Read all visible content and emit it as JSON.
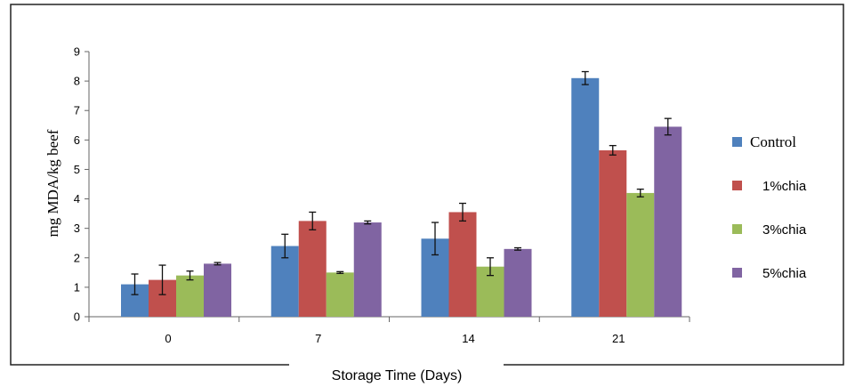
{
  "chart_data": {
    "type": "bar",
    "title": "",
    "xlabel": "Storage Time (Days)",
    "ylabel": "mg MDA/kg beef",
    "categories": [
      "0",
      "7",
      "14",
      "21"
    ],
    "ylim": [
      0,
      9
    ],
    "yticks": [
      "0",
      "1",
      "2",
      "3",
      "4",
      "5",
      "6",
      "7",
      "8",
      "9"
    ],
    "grid": false,
    "legend_position": "right",
    "series": [
      {
        "name": "Control",
        "color": "#4f81bd",
        "values": [
          1.1,
          2.4,
          2.65,
          8.1
        ],
        "errors": [
          0.35,
          0.4,
          0.55,
          0.22
        ]
      },
      {
        "name": "1%chia",
        "color": "#c0504d",
        "values": [
          1.25,
          3.25,
          3.55,
          5.65
        ],
        "errors": [
          0.5,
          0.3,
          0.3,
          0.16
        ]
      },
      {
        "name": "3%chia",
        "color": "#9bbb59",
        "values": [
          1.4,
          1.5,
          1.7,
          4.2
        ],
        "errors": [
          0.15,
          0.03,
          0.3,
          0.13
        ]
      },
      {
        "name": "5%chia",
        "color": "#8064a2",
        "values": [
          1.8,
          3.2,
          2.3,
          6.45
        ],
        "errors": [
          0.04,
          0.05,
          0.04,
          0.28
        ]
      }
    ]
  }
}
